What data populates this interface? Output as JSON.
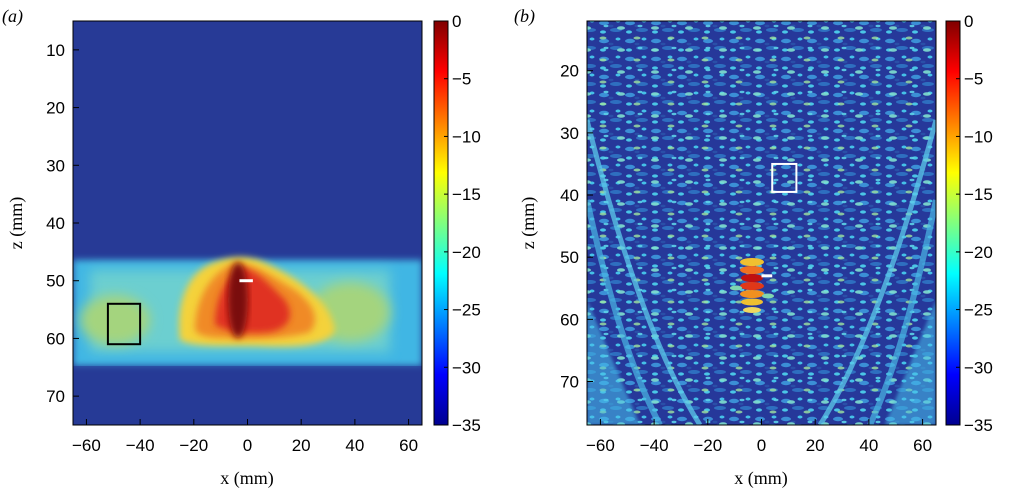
{
  "chart_data": [
    {
      "type": "heatmap",
      "panel_label": "(a)",
      "xlabel": "x (mm)",
      "ylabel": "z (mm)",
      "xlim": [
        -65,
        65
      ],
      "ylim": [
        5,
        75
      ],
      "y_reversed": true,
      "xticks": [
        "−60",
        "−40",
        "−20",
        "0",
        "20",
        "40",
        "60"
      ],
      "xtick_values": [
        -60,
        -40,
        -20,
        0,
        20,
        40,
        60
      ],
      "yticks": [
        "10",
        "20",
        "30",
        "40",
        "50",
        "60",
        "70"
      ],
      "ytick_values": [
        10,
        20,
        30,
        40,
        50,
        60,
        70
      ],
      "colorbar": {
        "range": [
          -35,
          0
        ],
        "ticks": [
          "0",
          "−5",
          "−10",
          "−15",
          "−20",
          "−25",
          "−30",
          "−35"
        ],
        "tick_values": [
          0,
          -5,
          -10,
          -15,
          -20,
          -25,
          -30,
          -35
        ],
        "colormap": "jet"
      },
      "features": {
        "band_z": [
          46.5,
          64.5
        ],
        "peak_x": -2,
        "peak_z": 55,
        "box": {
          "x": [
            -52,
            -40
          ],
          "z": [
            54,
            61
          ],
          "color": "#000000"
        },
        "marker": {
          "x": [
            -3,
            2
          ],
          "z": 50,
          "color": "#ffffff"
        }
      }
    },
    {
      "type": "heatmap",
      "panel_label": "(b)",
      "xlabel": "x (mm)",
      "ylabel": "z (mm)",
      "xlim": [
        -65,
        65
      ],
      "ylim": [
        12,
        77
      ],
      "y_reversed": true,
      "xticks": [
        "−60",
        "−40",
        "−20",
        "0",
        "20",
        "40",
        "60"
      ],
      "xtick_values": [
        -60,
        -40,
        -20,
        0,
        20,
        40,
        60
      ],
      "yticks": [
        "20",
        "30",
        "40",
        "50",
        "60",
        "70"
      ],
      "ytick_values": [
        20,
        30,
        40,
        50,
        60,
        70
      ],
      "colorbar": {
        "range": [
          -35,
          0
        ],
        "ticks": [
          "0",
          "−5",
          "−10",
          "−15",
          "−20",
          "−25",
          "−30",
          "−35"
        ],
        "tick_values": [
          0,
          -5,
          -10,
          -15,
          -20,
          -25,
          -30,
          -35
        ],
        "colormap": "jet"
      },
      "features": {
        "peak_x": -3,
        "peak_z": 53,
        "box": {
          "x": [
            4,
            13
          ],
          "z": [
            35,
            39.5
          ],
          "color": "#ffffff"
        },
        "marker": {
          "x": [
            0,
            4
          ],
          "z": 53,
          "color": "#ffffff"
        }
      }
    }
  ]
}
